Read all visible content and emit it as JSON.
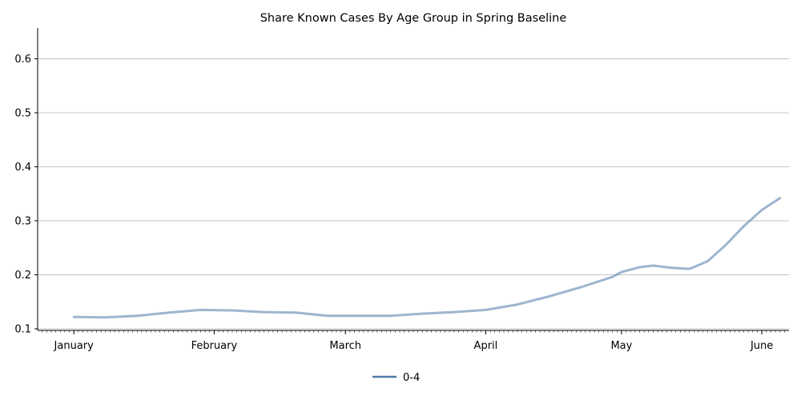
{
  "chart_data": {
    "type": "line",
    "title": "Share Known Cases By Age Group in Spring Baseline",
    "xlabel": "",
    "ylabel": "",
    "x_ticks": [
      "2020-01-01",
      "2020-02-01",
      "2020-03-01",
      "2020-04-01",
      "2020-05-01",
      "2020-06-01"
    ],
    "x_tick_labels": [
      "January",
      "February",
      "March",
      "April",
      "May",
      "June"
    ],
    "xlim": [
      "2019-12-24",
      "2020-06-07"
    ],
    "ylim": [
      0.097,
      0.657
    ],
    "y_ticks": [
      0.1,
      0.2,
      0.3,
      0.4,
      0.5,
      0.6
    ],
    "y_tick_labels": [
      "0.1",
      "0.2",
      "0.3",
      "0.4",
      "0.5",
      "0.6"
    ],
    "grid": "horizontal",
    "legend": "bottom-center",
    "series": [
      {
        "name": "0-4",
        "color": "#4e79a7",
        "points": [
          [
            "2020-01-01",
            0.122
          ],
          [
            "2020-01-08",
            0.121
          ],
          [
            "2020-01-15",
            0.124
          ],
          [
            "2020-01-22",
            0.13
          ],
          [
            "2020-01-29",
            0.135
          ],
          [
            "2020-02-05",
            0.134
          ],
          [
            "2020-02-12",
            0.131
          ],
          [
            "2020-02-19",
            0.13
          ],
          [
            "2020-02-26",
            0.124
          ],
          [
            "2020-03-04",
            0.124
          ],
          [
            "2020-03-11",
            0.124
          ],
          [
            "2020-03-18",
            0.128
          ],
          [
            "2020-03-25",
            0.131
          ],
          [
            "2020-04-01",
            0.135
          ],
          [
            "2020-04-08",
            0.145
          ],
          [
            "2020-04-15",
            0.16
          ],
          [
            "2020-04-22",
            0.177
          ],
          [
            "2020-04-29",
            0.196
          ],
          [
            "2020-05-01",
            0.205
          ],
          [
            "2020-05-05",
            0.214
          ],
          [
            "2020-05-08",
            0.217
          ],
          [
            "2020-05-12",
            0.213
          ],
          [
            "2020-05-16",
            0.211
          ],
          [
            "2020-05-20",
            0.225
          ],
          [
            "2020-05-24",
            0.255
          ],
          [
            "2020-05-28",
            0.29
          ],
          [
            "2020-06-01",
            0.32
          ],
          [
            "2020-06-05",
            0.342
          ]
        ]
      }
    ]
  }
}
